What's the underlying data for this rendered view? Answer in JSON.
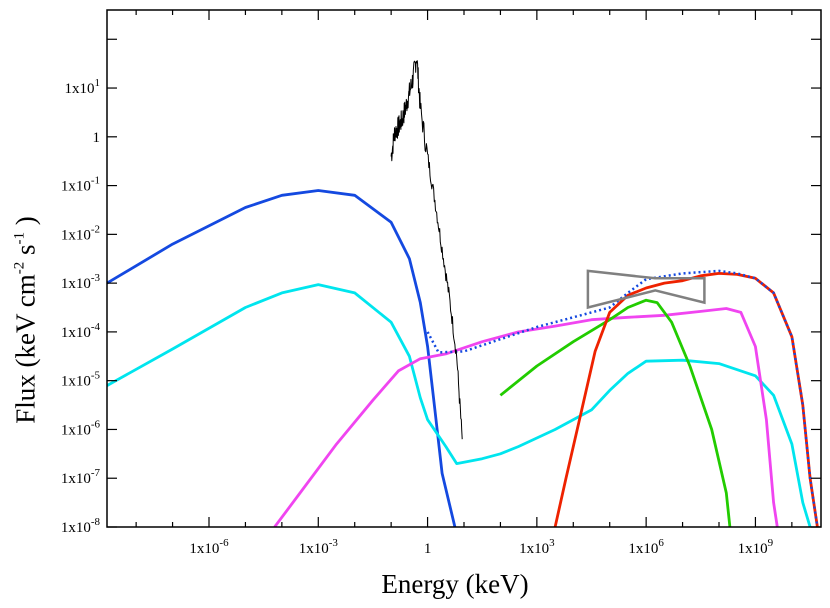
{
  "chart_data": {
    "type": "line",
    "x_scale": "log",
    "y_scale": "log",
    "xlim_log10": [
      -8.8,
      10.8
    ],
    "ylim_log10": [
      -8,
      2.6
    ],
    "xlabel": "Energy (keV)",
    "ylabel": {
      "prefix": "Flux (keV cm",
      "exp1": "-2",
      "mid": " s",
      "exp2": "-1",
      "suffix": " )"
    },
    "x_tick_labels": [
      {
        "log": -6,
        "text": "1x10-6",
        "base": "1x10",
        "exp": "-6"
      },
      {
        "log": -3,
        "text": "1x10-3",
        "base": "1x10",
        "exp": "-3"
      },
      {
        "log": 0,
        "text": "1",
        "base": "1",
        "exp": ""
      },
      {
        "log": 3,
        "text": "1x103",
        "base": "1x10",
        "exp": "3"
      },
      {
        "log": 6,
        "text": "1x106",
        "base": "1x10",
        "exp": "6"
      },
      {
        "log": 9,
        "text": "1x109",
        "base": "1x10",
        "exp": "9"
      }
    ],
    "y_tick_labels": [
      {
        "log": 1,
        "text": "1x101",
        "base": "1x10",
        "exp": "1"
      },
      {
        "log": 0,
        "text": "1",
        "base": "1",
        "exp": ""
      },
      {
        "log": -1,
        "text": "1x10-1",
        "base": "1x10",
        "exp": "-1"
      },
      {
        "log": -2,
        "text": "1x10-2",
        "base": "1x10",
        "exp": "-2"
      },
      {
        "log": -3,
        "text": "1x10-3",
        "base": "1x10",
        "exp": "-3"
      },
      {
        "log": -4,
        "text": "1x10-4",
        "base": "1x10",
        "exp": "-4"
      },
      {
        "log": -5,
        "text": "1x10-5",
        "base": "1x10",
        "exp": "-5"
      },
      {
        "log": -6,
        "text": "1x10-6",
        "base": "1x10",
        "exp": "-6"
      },
      {
        "log": -7,
        "text": "1x10-7",
        "base": "1x10",
        "exp": "-7"
      },
      {
        "log": -8,
        "text": "1x10-8",
        "base": "1x10",
        "exp": "-8"
      }
    ],
    "series": [
      {
        "name": "synchrotron-blue",
        "color": "#1449e0",
        "style": "solid",
        "points": [
          [
            -8.8,
            -3.0
          ],
          [
            -7,
            -2.2
          ],
          [
            -5,
            -1.45
          ],
          [
            -4,
            -1.2
          ],
          [
            -3,
            -1.1
          ],
          [
            -2,
            -1.2
          ],
          [
            -1,
            -1.75
          ],
          [
            -0.5,
            -2.5
          ],
          [
            -0.2,
            -3.4
          ],
          [
            0,
            -4.3
          ],
          [
            0.2,
            -5.6
          ],
          [
            0.4,
            -6.9
          ],
          [
            0.75,
            -8
          ]
        ]
      },
      {
        "name": "synchrotron-cyan",
        "color": "#00e5ee",
        "style": "solid",
        "points": [
          [
            -8.8,
            -5.1
          ],
          [
            -7,
            -4.35
          ],
          [
            -5,
            -3.5
          ],
          [
            -4,
            -3.2
          ],
          [
            -3,
            -3.03
          ],
          [
            -2,
            -3.2
          ],
          [
            -1,
            -3.8
          ],
          [
            -0.5,
            -4.5
          ],
          [
            -0.2,
            -5.35
          ],
          [
            0,
            -5.8
          ],
          [
            0.5,
            -6.35
          ],
          [
            0.8,
            -6.7
          ],
          [
            1.5,
            -6.6
          ],
          [
            2,
            -6.5
          ],
          [
            2.5,
            -6.35
          ],
          [
            3.5,
            -6.0
          ],
          [
            4.5,
            -5.6
          ],
          [
            5,
            -5.2
          ],
          [
            5.5,
            -4.85
          ],
          [
            6,
            -4.6
          ],
          [
            7,
            -4.58
          ],
          [
            8,
            -4.65
          ],
          [
            9,
            -4.9
          ],
          [
            9.5,
            -5.3
          ],
          [
            10,
            -6.3
          ],
          [
            10.3,
            -7.5
          ],
          [
            10.5,
            -8
          ]
        ]
      },
      {
        "name": "ssc-magenta",
        "color": "#f045f0",
        "style": "solid",
        "points": [
          [
            -4.2,
            -8
          ],
          [
            -3.5,
            -7.3
          ],
          [
            -2.5,
            -6.3
          ],
          [
            -1.5,
            -5.4
          ],
          [
            -0.8,
            -4.8
          ],
          [
            -0.2,
            -4.55
          ],
          [
            0.5,
            -4.45
          ],
          [
            1.5,
            -4.2
          ],
          [
            2.5,
            -4.0
          ],
          [
            3.5,
            -3.88
          ],
          [
            4.5,
            -3.75
          ],
          [
            5.5,
            -3.7
          ],
          [
            6.5,
            -3.66
          ],
          [
            7.5,
            -3.58
          ],
          [
            8.2,
            -3.52
          ],
          [
            8.6,
            -3.6
          ],
          [
            9,
            -4.3
          ],
          [
            9.3,
            -5.8
          ],
          [
            9.5,
            -7.5
          ],
          [
            9.6,
            -8
          ]
        ]
      },
      {
        "name": "ec-green",
        "color": "#22cc00",
        "style": "solid",
        "points": [
          [
            2,
            -5.3
          ],
          [
            3,
            -4.7
          ],
          [
            4,
            -4.2
          ],
          [
            5,
            -3.75
          ],
          [
            5.5,
            -3.5
          ],
          [
            6,
            -3.35
          ],
          [
            6.3,
            -3.4
          ],
          [
            6.7,
            -3.8
          ],
          [
            7.2,
            -4.7
          ],
          [
            7.8,
            -6.0
          ],
          [
            8.2,
            -7.3
          ],
          [
            8.3,
            -8
          ]
        ]
      },
      {
        "name": "hadronic-red",
        "color": "#ee2200",
        "style": "solid",
        "points": [
          [
            3.5,
            -8
          ],
          [
            3.8,
            -7.0
          ],
          [
            4.2,
            -5.7
          ],
          [
            4.6,
            -4.4
          ],
          [
            5,
            -3.6
          ],
          [
            5.5,
            -3.25
          ],
          [
            6,
            -3.1
          ],
          [
            6.5,
            -3.0
          ],
          [
            7,
            -2.95
          ],
          [
            7.5,
            -2.85
          ],
          [
            8,
            -2.8
          ],
          [
            8.5,
            -2.82
          ],
          [
            9,
            -2.9
          ],
          [
            9.5,
            -3.2
          ],
          [
            10,
            -4.1
          ],
          [
            10.3,
            -5.5
          ],
          [
            10.5,
            -7.0
          ],
          [
            10.7,
            -8
          ]
        ]
      },
      {
        "name": "total-dotted",
        "color": "#1449e0",
        "style": "dotted",
        "points": [
          [
            0,
            -4.0
          ],
          [
            0.3,
            -4.42
          ],
          [
            1,
            -4.4
          ],
          [
            2,
            -4.15
          ],
          [
            3,
            -3.9
          ],
          [
            4,
            -3.7
          ],
          [
            5,
            -3.5
          ],
          [
            5.5,
            -3.2
          ],
          [
            6,
            -2.92
          ],
          [
            7,
            -2.8
          ],
          [
            8,
            -2.75
          ],
          [
            8.5,
            -2.8
          ],
          [
            9,
            -2.9
          ],
          [
            9.5,
            -3.2
          ],
          [
            10,
            -4.1
          ],
          [
            10.3,
            -5.5
          ],
          [
            10.5,
            -7.0
          ],
          [
            10.7,
            -8
          ]
        ]
      },
      {
        "name": "xray-data-black",
        "color": "#000000",
        "style": "noisy",
        "points": [
          [
            -1,
            -0.4
          ],
          [
            -0.9,
            0.1
          ],
          [
            -0.8,
            0.2
          ],
          [
            -0.7,
            0.35
          ],
          [
            -0.6,
            0.6
          ],
          [
            -0.5,
            0.9
          ],
          [
            -0.4,
            1.2
          ],
          [
            -0.3,
            1.65
          ],
          [
            -0.2,
            0.6
          ],
          [
            0,
            -0.4
          ],
          [
            0.2,
            -1.3
          ],
          [
            0.4,
            -2.3
          ],
          [
            0.6,
            -3.3
          ],
          [
            0.8,
            -4.5
          ],
          [
            0.95,
            -6.2
          ]
        ]
      }
    ],
    "bowtie": {
      "color": "#808080",
      "x_log": [
        4.4,
        7.6
      ],
      "y_left_log": [
        -2.75,
        -3.5
      ],
      "y_right_log": [
        -2.9,
        -3.4
      ],
      "pivot_log": [
        6.25,
        -3.1
      ]
    }
  }
}
